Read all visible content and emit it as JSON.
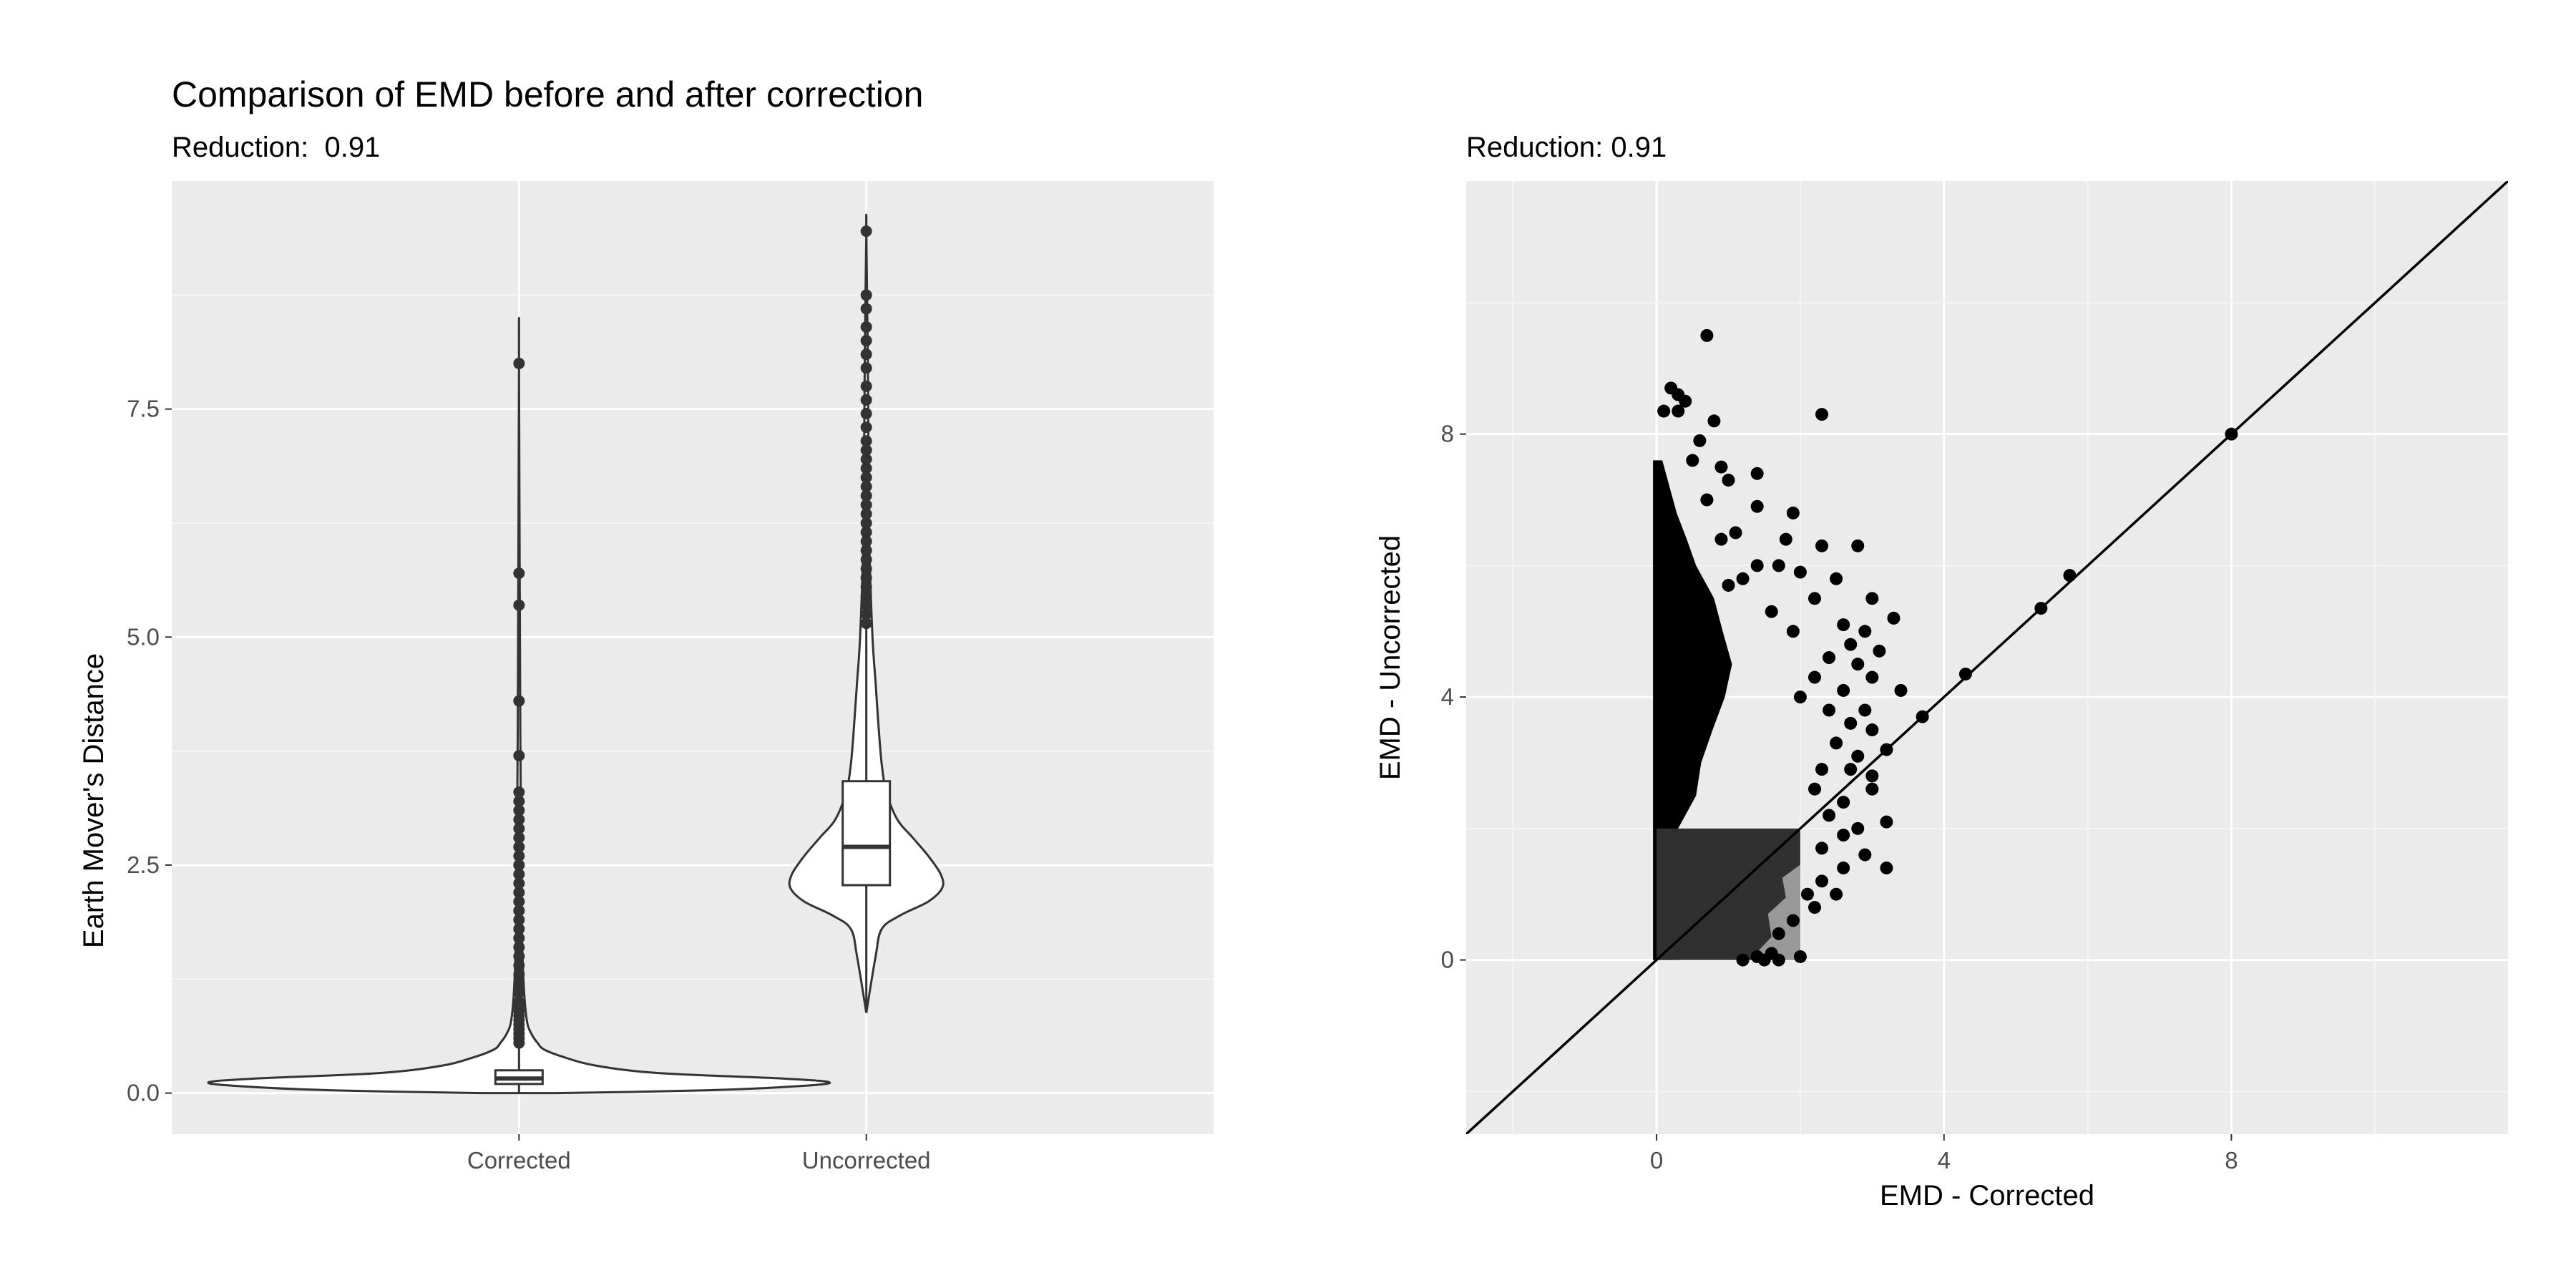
{
  "colors": {
    "panel_bg": "#ebebeb",
    "grid_major": "#ffffff",
    "grid_minor": "#f5f5f5",
    "ink": "#000000",
    "box_line": "#333333",
    "density_dark": "#303030",
    "density_light": "#999999"
  },
  "chart_data": [
    {
      "type": "violin",
      "title": "Comparison of EMD before and after correction",
      "subtitle": "Reduction:  0.91",
      "xlabel": "",
      "ylabel": "Earth Mover's Distance",
      "categories": [
        "Corrected",
        "Uncorrected"
      ],
      "yticks": [
        "0.0",
        "2.5",
        "5.0",
        "7.5"
      ],
      "ylim": [
        -0.45,
        10.0
      ],
      "grid": true,
      "series": [
        {
          "category": "Corrected",
          "box": {
            "q1": 0.1,
            "median": 0.16,
            "q3": 0.25,
            "whisker_low": 0.0,
            "whisker_high": 0.5
          },
          "outliers": [
            0.55,
            0.6,
            0.65,
            0.7,
            0.75,
            0.8,
            0.85,
            0.9,
            0.95,
            1.0,
            1.1,
            1.2,
            1.3,
            1.4,
            1.5,
            1.6,
            1.7,
            1.8,
            1.9,
            2.0,
            2.1,
            2.2,
            2.3,
            2.4,
            2.5,
            2.6,
            2.7,
            2.8,
            2.9,
            3.0,
            3.1,
            3.2,
            3.3,
            3.7,
            4.3,
            5.35,
            5.7,
            8.0
          ],
          "violin_profile": [
            [
              0.0,
              0.12
            ],
            [
              0.03,
              0.6
            ],
            [
              0.08,
              0.92
            ],
            [
              0.12,
              1.0
            ],
            [
              0.16,
              0.85
            ],
            [
              0.22,
              0.45
            ],
            [
              0.3,
              0.25
            ],
            [
              0.4,
              0.14
            ],
            [
              0.48,
              0.08
            ],
            [
              0.55,
              0.06
            ],
            [
              0.65,
              0.04
            ],
            [
              0.8,
              0.025
            ],
            [
              1.2,
              0.015
            ],
            [
              2.0,
              0.008
            ],
            [
              4.0,
              0.004
            ],
            [
              8.0,
              0.0
            ]
          ]
        },
        {
          "category": "Uncorrected",
          "box": {
            "q1": 2.28,
            "median": 2.7,
            "q3": 3.42,
            "whisker_low": 0.88,
            "whisker_high": 5.1
          },
          "outliers": [
            5.15,
            5.25,
            5.35,
            5.45,
            5.55,
            5.65,
            5.75,
            5.85,
            5.95,
            6.05,
            6.15,
            6.25,
            6.35,
            6.45,
            6.55,
            6.65,
            6.75,
            6.85,
            6.95,
            7.05,
            7.15,
            7.3,
            7.45,
            7.6,
            7.75,
            7.95,
            8.1,
            8.25,
            8.4,
            8.6,
            8.75,
            9.45
          ],
          "violin_profile": [
            [
              0.88,
              0.0
            ],
            [
              1.5,
              0.03
            ],
            [
              1.8,
              0.05
            ],
            [
              1.95,
              0.11
            ],
            [
              2.1,
              0.2
            ],
            [
              2.25,
              0.245
            ],
            [
              2.4,
              0.24
            ],
            [
              2.6,
              0.2
            ],
            [
              2.8,
              0.15
            ],
            [
              3.0,
              0.1
            ],
            [
              3.3,
              0.065
            ],
            [
              3.6,
              0.05
            ],
            [
              4.0,
              0.04
            ],
            [
              4.5,
              0.03
            ],
            [
              5.0,
              0.02
            ],
            [
              6.0,
              0.01
            ],
            [
              7.0,
              0.007
            ],
            [
              8.0,
              0.005
            ],
            [
              9.45,
              0.0
            ]
          ]
        }
      ]
    },
    {
      "type": "scatter",
      "title": "",
      "subtitle": "Reduction: 0.91",
      "xlabel": "EMD - Corrected",
      "ylabel": "EMD - Uncorrected",
      "xticks": [
        "0",
        "4",
        "8"
      ],
      "yticks": [
        "0",
        "4",
        "8"
      ],
      "xlim": [
        -2.65,
        11.85
      ],
      "ylim": [
        -2.65,
        11.85
      ],
      "grid": true,
      "reference_line": {
        "slope": 1,
        "intercept": 0
      },
      "density_region": {
        "x": [
          0,
          2
        ],
        "y": [
          0,
          2
        ]
      },
      "points": [
        [
          0.7,
          9.5
        ],
        [
          0.2,
          8.7
        ],
        [
          0.3,
          8.6
        ],
        [
          0.4,
          8.5
        ],
        [
          0.1,
          8.35
        ],
        [
          0.3,
          8.35
        ],
        [
          0.8,
          8.2
        ],
        [
          2.3,
          8.3
        ],
        [
          0.6,
          7.9
        ],
        [
          0.5,
          7.6
        ],
        [
          0.9,
          7.5
        ],
        [
          1.4,
          7.4
        ],
        [
          1.0,
          7.3
        ],
        [
          0.7,
          7.0
        ],
        [
          1.4,
          6.9
        ],
        [
          1.9,
          6.8
        ],
        [
          1.1,
          6.5
        ],
        [
          0.9,
          6.4
        ],
        [
          1.8,
          6.4
        ],
        [
          2.3,
          6.3
        ],
        [
          2.8,
          6.3
        ],
        [
          1.4,
          6.0
        ],
        [
          1.7,
          6.0
        ],
        [
          1.2,
          5.8
        ],
        [
          2.0,
          5.9
        ],
        [
          1.0,
          5.7
        ],
        [
          2.5,
          5.8
        ],
        [
          2.2,
          5.5
        ],
        [
          3.0,
          5.5
        ],
        [
          1.6,
          5.3
        ],
        [
          3.3,
          5.2
        ],
        [
          2.6,
          5.1
        ],
        [
          1.9,
          5.0
        ],
        [
          2.9,
          5.0
        ],
        [
          2.7,
          4.8
        ],
        [
          3.1,
          4.7
        ],
        [
          2.4,
          4.6
        ],
        [
          2.8,
          4.5
        ],
        [
          2.2,
          4.3
        ],
        [
          3.0,
          4.3
        ],
        [
          2.6,
          4.1
        ],
        [
          3.4,
          4.1
        ],
        [
          2.0,
          4.0
        ],
        [
          2.4,
          3.8
        ],
        [
          2.9,
          3.8
        ],
        [
          2.7,
          3.6
        ],
        [
          3.0,
          3.5
        ],
        [
          3.2,
          3.2
        ],
        [
          2.5,
          3.3
        ],
        [
          2.8,
          3.1
        ],
        [
          2.3,
          2.9
        ],
        [
          2.7,
          2.9
        ],
        [
          3.0,
          2.8
        ],
        [
          2.2,
          2.6
        ],
        [
          2.6,
          2.4
        ],
        [
          3.0,
          2.6
        ],
        [
          2.4,
          2.2
        ],
        [
          2.8,
          2.0
        ],
        [
          3.2,
          2.1
        ],
        [
          2.6,
          1.9
        ],
        [
          2.3,
          1.7
        ],
        [
          2.9,
          1.6
        ],
        [
          2.6,
          1.4
        ],
        [
          3.2,
          1.4
        ],
        [
          2.3,
          1.2
        ],
        [
          2.5,
          1.0
        ],
        [
          2.1,
          1.0
        ],
        [
          2.2,
          0.8
        ],
        [
          1.9,
          0.6
        ],
        [
          1.7,
          0.4
        ],
        [
          1.6,
          0.1
        ],
        [
          1.4,
          0.05
        ],
        [
          1.2,
          0.0
        ],
        [
          1.5,
          0.0
        ],
        [
          1.7,
          0.0
        ],
        [
          2.0,
          0.05
        ],
        [
          3.7,
          3.7
        ],
        [
          4.3,
          4.35
        ],
        [
          5.35,
          5.35
        ],
        [
          5.75,
          5.85
        ],
        [
          8.0,
          8.0
        ]
      ]
    }
  ]
}
